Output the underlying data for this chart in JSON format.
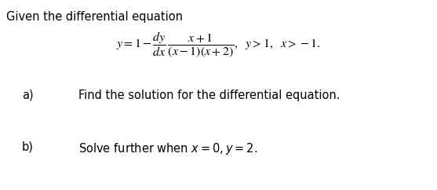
{
  "title_text": "Given the differential equation",
  "part_a_label": "a)",
  "part_a_text": "Find the solution for the differential equation.",
  "part_b_label": "b)",
  "part_b_text": "Solve further when ",
  "part_b_math": "x = 0, y = 2.",
  "bg_color": "#ffffff",
  "text_color": "#000000",
  "font_size_title": 10.5,
  "font_size_eq": 11.5,
  "font_size_parts": 10.5,
  "eq_lhs": "y = 1 −",
  "eq_rhs": ",  y > 1,  x > −1.",
  "fig_width": 5.57,
  "fig_height": 2.42,
  "dpi": 100
}
